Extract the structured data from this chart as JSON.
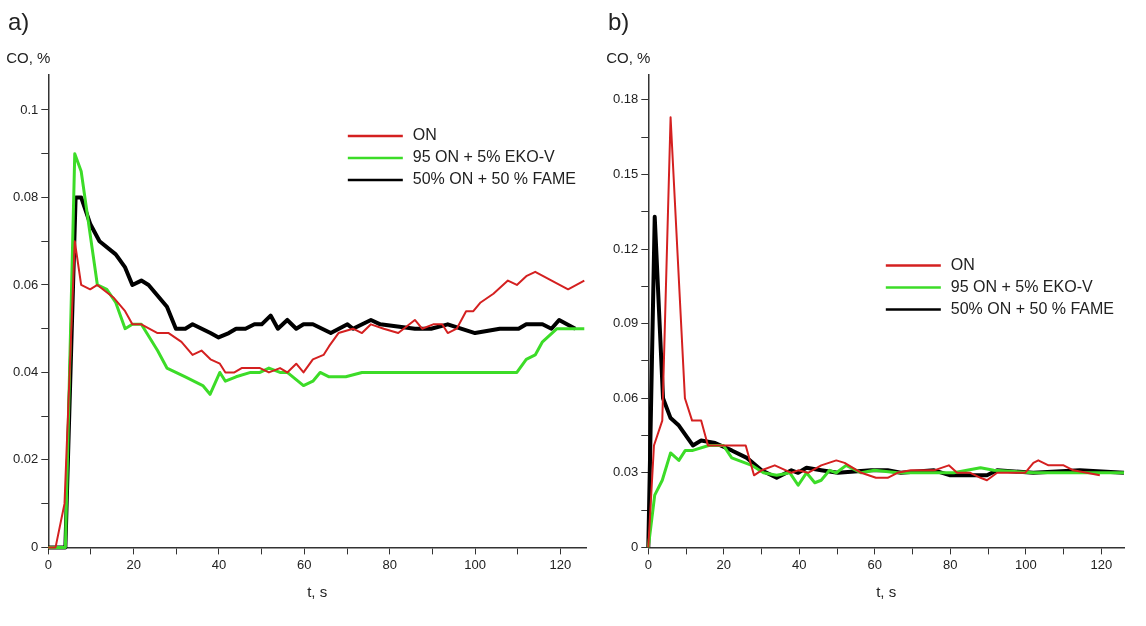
{
  "chart_data": [
    {
      "type": "line",
      "title": "a)",
      "ylabel": "CO, %",
      "xlabel": "t, s",
      "legend": "top right",
      "grid": false,
      "marker": "none",
      "line_style": "solid",
      "xlim": [
        0,
        126
      ],
      "ylim": [
        0,
        0.108
      ],
      "xticks": [
        0,
        {
          "value": 10,
          "label": null
        },
        20,
        {
          "value": 30,
          "label": null
        },
        40,
        {
          "value": 50,
          "label": null
        },
        60,
        {
          "value": 70,
          "label": null
        },
        80,
        {
          "value": 90,
          "label": null
        },
        100,
        {
          "value": 110,
          "label": null
        },
        120
      ],
      "yticks": [
        0,
        {
          "value": 0.01,
          "label": null
        },
        0.02,
        {
          "value": 0.03,
          "label": null
        },
        0.04,
        {
          "value": 0.05,
          "label": null
        },
        0.06,
        {
          "value": 0.07,
          "label": null
        },
        0.08,
        {
          "value": 0.09,
          "label": null
        },
        0.1
      ],
      "series": [
        {
          "name": "ON",
          "color": "#d42020",
          "x": [
            0,
            1.7,
            3.8,
            6.2,
            7.7,
            9.8,
            11.5,
            15.4,
            18,
            19.7,
            21.8,
            25.6,
            28.2,
            31.2,
            33.8,
            35.9,
            38,
            40.2,
            41.5,
            43.6,
            45.3,
            49.6,
            51.7,
            54.3,
            56,
            58.1,
            59.8,
            62,
            64.5,
            65.8,
            68,
            71.4,
            73.5,
            75.6,
            78.6,
            82,
            85.9,
            87.6,
            90.2,
            92.3,
            93.6,
            95.7,
            97.9,
            99.6,
            101.3,
            104.3,
            107.7,
            109.8,
            112,
            114.1,
            121.8,
            125.6
          ],
          "values": [
            0,
            0,
            0.01,
            0.07,
            0.06,
            0.059,
            0.06,
            0.057,
            0.054,
            0.051,
            0.051,
            0.049,
            0.049,
            0.047,
            0.044,
            0.045,
            0.043,
            0.042,
            0.04,
            0.04,
            0.041,
            0.041,
            0.04,
            0.041,
            0.04,
            0.042,
            0.04,
            0.043,
            0.044,
            0.046,
            0.049,
            0.05,
            0.049,
            0.051,
            0.05,
            0.049,
            0.052,
            0.05,
            0.051,
            0.051,
            0.049,
            0.05,
            0.054,
            0.054,
            0.056,
            0.058,
            0.061,
            0.06,
            0.062,
            0.063,
            0.059,
            0.061
          ]
        },
        {
          "name": "95 ON + 5% EKO-V",
          "color": "#3cdc28",
          "x": [
            0,
            4,
            6.2,
            7.7,
            11.5,
            13.7,
            15.8,
            18,
            19.7,
            21.8,
            25.6,
            27.8,
            32.1,
            36.2,
            37.9,
            40.2,
            41.5,
            44,
            47.4,
            49.6,
            51.7,
            54.3,
            56,
            59.8,
            62,
            63.7,
            65.8,
            69.7,
            73.5,
            85.5,
            93.6,
            108.1,
            109.8,
            112,
            114.1,
            115.8,
            119.2,
            122.2,
            125.6
          ],
          "values": [
            0,
            0,
            0.09,
            0.086,
            0.06,
            0.059,
            0.056,
            0.05,
            0.051,
            0.051,
            0.045,
            0.041,
            0.039,
            0.037,
            0.035,
            0.04,
            0.038,
            0.039,
            0.04,
            0.04,
            0.041,
            0.04,
            0.04,
            0.037,
            0.038,
            0.04,
            0.039,
            0.039,
            0.04,
            0.04,
            0.04,
            0.04,
            0.04,
            0.043,
            0.044,
            0.047,
            0.05,
            0.05,
            0.05
          ]
        },
        {
          "name": "50% ON + 50 % FAME",
          "color": "#000000",
          "x": [
            0,
            4,
            6.4,
            7.7,
            9.8,
            12,
            15.8,
            18,
            19.7,
            21.8,
            23.5,
            27.8,
            29.9,
            32.1,
            33.8,
            38,
            39.9,
            42.3,
            44,
            46.2,
            48.3,
            50,
            52.1,
            53.8,
            56,
            58.1,
            59.8,
            62,
            66.2,
            70.1,
            71.4,
            75.6,
            77.8,
            85.9,
            89.7,
            93.6,
            100,
            105.8,
            110.2,
            112,
            115.8,
            117.9,
            119.7,
            123.5
          ],
          "values": [
            0,
            0,
            0.08,
            0.08,
            0.074,
            0.07,
            0.067,
            0.064,
            0.06,
            0.061,
            0.06,
            0.055,
            0.05,
            0.05,
            0.051,
            0.049,
            0.048,
            0.049,
            0.05,
            0.05,
            0.051,
            0.051,
            0.053,
            0.05,
            0.052,
            0.05,
            0.051,
            0.051,
            0.049,
            0.051,
            0.05,
            0.052,
            0.051,
            0.05,
            0.05,
            0.051,
            0.049,
            0.05,
            0.05,
            0.051,
            0.051,
            0.05,
            0.052,
            0.05
          ]
        }
      ]
    },
    {
      "type": "line",
      "title": "b)",
      "ylabel": "CO, %",
      "xlabel": "t, s",
      "legend": "right",
      "grid": false,
      "marker": "none",
      "line_style": "solid",
      "xlim": [
        0,
        126
      ],
      "ylim": [
        0,
        0.19
      ],
      "xticks": [
        0,
        {
          "value": 10,
          "label": null
        },
        20,
        {
          "value": 30,
          "label": null
        },
        40,
        {
          "value": 50,
          "label": null
        },
        60,
        {
          "value": 70,
          "label": null
        },
        80,
        {
          "value": 90,
          "label": null
        },
        100,
        {
          "value": 110,
          "label": null
        },
        120
      ],
      "yticks": [
        0,
        {
          "value": 0.015,
          "label": null
        },
        0.03,
        {
          "value": 0.045,
          "label": null
        },
        0.06,
        {
          "value": 0.075,
          "label": null
        },
        0.09,
        {
          "value": 0.105,
          "label": null
        },
        0.12,
        {
          "value": 0.135,
          "label": null
        },
        0.15,
        {
          "value": 0.165,
          "label": null
        },
        0.18
      ],
      "series": [
        {
          "name": "ON",
          "color": "#d42020",
          "x": [
            0,
            1.5,
            3.7,
            5.9,
            9.7,
            11.6,
            14,
            15.8,
            25.8,
            28,
            30,
            33.5,
            37.9,
            39.7,
            42.3,
            45.8,
            49.8,
            52,
            56.4,
            60.3,
            63.4,
            66,
            69.5,
            73.5,
            75.7,
            79.6,
            81.8,
            85.3,
            88,
            89.7,
            92.4,
            95.9,
            99.8,
            102,
            103.3,
            106,
            110,
            112.6,
            116.1,
            119.6
          ],
          "values": [
            0,
            0.041,
            0.051,
            0.173,
            0.06,
            0.051,
            0.051,
            0.041,
            0.041,
            0.029,
            0.031,
            0.033,
            0.03,
            0.031,
            0.03,
            0.033,
            0.035,
            0.034,
            0.03,
            0.028,
            0.028,
            0.03,
            0.031,
            0.031,
            0.031,
            0.033,
            0.03,
            0.03,
            0.028,
            0.027,
            0.03,
            0.03,
            0.03,
            0.034,
            0.035,
            0.033,
            0.033,
            0.031,
            0.03,
            0.029
          ]
        },
        {
          "name": "95 ON + 5% EKO-V",
          "color": "#3cdc28",
          "x": [
            0,
            1.7,
            3.7,
            5.9,
            8.1,
            9.8,
            11.8,
            16,
            19.9,
            22.1,
            27.4,
            30.5,
            34,
            37.5,
            39.7,
            41.9,
            44.1,
            45.8,
            48,
            49.8,
            52.4,
            56.4,
            59.9,
            66,
            80.9,
            84.4,
            88,
            91.5,
            102.1,
            126
          ],
          "values": [
            0,
            0.021,
            0.027,
            0.038,
            0.035,
            0.039,
            0.039,
            0.041,
            0.041,
            0.036,
            0.033,
            0.03,
            0.029,
            0.03,
            0.025,
            0.03,
            0.026,
            0.027,
            0.031,
            0.03,
            0.033,
            0.03,
            0.031,
            0.03,
            0.03,
            0.031,
            0.032,
            0.031,
            0.03,
            0.03
          ]
        },
        {
          "name": "50% ON + 50 % FAME",
          "color": "#000000",
          "x": [
            0,
            1.7,
            3.9,
            5.9,
            8.1,
            11.8,
            14,
            17.7,
            22.1,
            26.1,
            30,
            34,
            37.9,
            39.7,
            41.9,
            45.8,
            50.2,
            59,
            63.4,
            66.9,
            75.7,
            80,
            89.7,
            92.4,
            102,
            114.3,
            126
          ],
          "values": [
            0,
            0.133,
            0.06,
            0.052,
            0.049,
            0.041,
            0.043,
            0.042,
            0.039,
            0.036,
            0.031,
            0.028,
            0.031,
            0.03,
            0.032,
            0.031,
            0.03,
            0.031,
            0.031,
            0.03,
            0.031,
            0.029,
            0.029,
            0.031,
            0.03,
            0.031,
            0.03
          ]
        }
      ]
    }
  ]
}
